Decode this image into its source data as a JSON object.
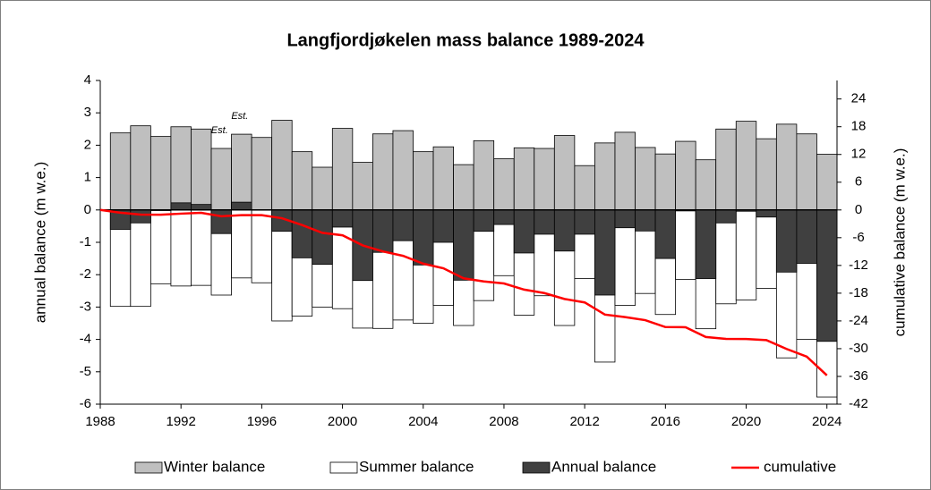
{
  "chart_data": {
    "type": "bar",
    "title": "Langfjordjøkelen mass balance 1989-2024",
    "y_label": "annual balance (m w.e.)",
    "y2_label": "cumulative balance (m w.e.)",
    "x": [
      1989,
      1990,
      1991,
      1992,
      1993,
      1994,
      1995,
      1996,
      1997,
      1998,
      1999,
      2000,
      2001,
      2002,
      2003,
      2004,
      2005,
      2006,
      2007,
      2008,
      2009,
      2010,
      2011,
      2012,
      2013,
      2014,
      2015,
      2016,
      2017,
      2018,
      2019,
      2020,
      2021,
      2022,
      2023,
      2024
    ],
    "series": [
      {
        "name": "Winter balance",
        "color": "#bfbfbf",
        "values": [
          2.38,
          2.6,
          2.27,
          2.57,
          2.5,
          1.9,
          2.34,
          2.24,
          2.77,
          1.8,
          1.32,
          2.52,
          1.47,
          2.35,
          2.45,
          1.8,
          1.95,
          1.4,
          2.14,
          1.58,
          1.92,
          1.9,
          2.3,
          1.37,
          2.07,
          2.4,
          1.93,
          1.73,
          2.12,
          1.55,
          2.5,
          2.74,
          2.2,
          2.65,
          2.35,
          1.72
        ]
      },
      {
        "name": "Summer balance",
        "color": "#ffffff",
        "values": [
          -2.98,
          -2.98,
          -2.28,
          -2.35,
          -2.33,
          -2.63,
          -2.1,
          -2.25,
          -3.43,
          -3.28,
          -3.0,
          -3.05,
          -3.65,
          -3.66,
          -3.4,
          -3.5,
          -2.95,
          -3.57,
          -2.8,
          -2.03,
          -3.25,
          -2.65,
          -3.57,
          -2.12,
          -4.7,
          -2.95,
          -2.58,
          -3.23,
          -2.15,
          -3.67,
          -2.9,
          -2.78,
          -2.42,
          -4.57,
          -4.0,
          -5.78
        ]
      },
      {
        "name": "Annual balance",
        "color": "#404040",
        "values": [
          -0.6,
          -0.4,
          -0.02,
          0.22,
          0.17,
          -0.73,
          0.24,
          -0.01,
          -0.66,
          -1.48,
          -1.68,
          -0.53,
          -2.18,
          -1.31,
          -0.95,
          -1.7,
          -1.0,
          -2.17,
          -0.66,
          -0.45,
          -1.33,
          -0.75,
          -1.27,
          -0.75,
          -2.63,
          -0.55,
          -0.65,
          -1.5,
          -0.03,
          -2.12,
          -0.4,
          -0.04,
          -0.22,
          -1.92,
          -1.65,
          -4.06
        ]
      }
    ],
    "line": {
      "name": "cumulative",
      "color": "#ff0000",
      "axis": "y2",
      "x": [
        1988,
        1989,
        1990,
        1991,
        1992,
        1993,
        1994,
        1995,
        1996,
        1997,
        1998,
        1999,
        2000,
        2001,
        2002,
        2003,
        2004,
        2005,
        2006,
        2007,
        2008,
        2009,
        2010,
        2011,
        2012,
        2013,
        2014,
        2015,
        2016,
        2017,
        2018,
        2019,
        2020,
        2021,
        2022,
        2023,
        2024
      ],
      "values": [
        0,
        -0.6,
        -1.0,
        -1.02,
        -0.8,
        -0.63,
        -1.36,
        -1.12,
        -1.13,
        -1.79,
        -3.27,
        -4.95,
        -5.48,
        -7.66,
        -8.97,
        -9.92,
        -11.62,
        -12.62,
        -14.79,
        -15.45,
        -15.9,
        -17.23,
        -17.98,
        -19.25,
        -20.0,
        -22.63,
        -23.18,
        -23.83,
        -25.33,
        -25.36,
        -27.48,
        -27.88,
        -27.92,
        -28.14,
        -30.06,
        -31.71,
        -35.77
      ]
    },
    "annotations": [
      {
        "text": "Est.",
        "x": 1994
      },
      {
        "text": "Est.",
        "x": 1995
      }
    ],
    "xlim": [
      1988,
      2024.5
    ],
    "xticks": [
      1988,
      1992,
      1996,
      2000,
      2004,
      2008,
      2012,
      2016,
      2020,
      2024
    ],
    "ylim": [
      -6,
      4
    ],
    "yticks": [
      -6,
      -5,
      -4,
      -3,
      -2,
      -1,
      0,
      1,
      2,
      3,
      4
    ],
    "y2lim": [
      -42,
      28
    ],
    "y2ticks": [
      -42,
      -36,
      -30,
      -24,
      -18,
      -12,
      -6,
      0,
      6,
      12,
      18,
      24
    ],
    "legend": "bottom"
  }
}
